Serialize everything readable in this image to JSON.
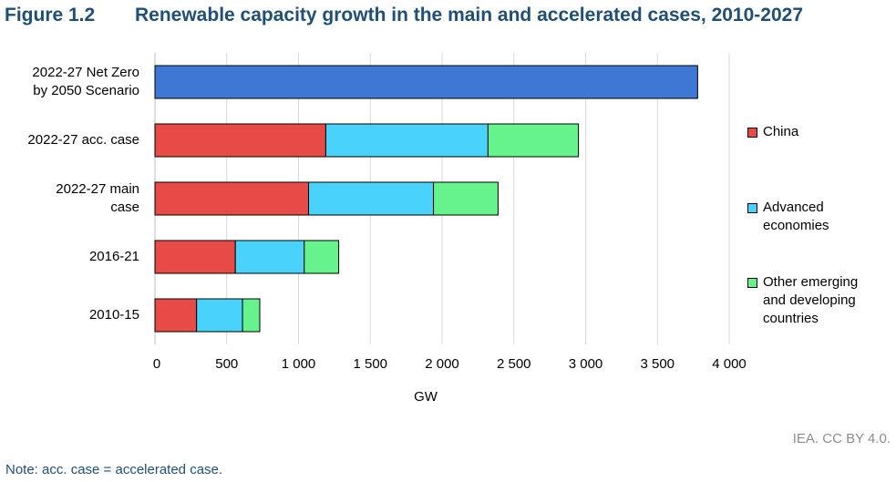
{
  "figure": {
    "number": "Figure 1.2",
    "title": "Renewable capacity growth in the main and accelerated cases, 2010-2027"
  },
  "credit": "IEA. CC BY 4.0.",
  "note": "Note: acc. case = accelerated case.",
  "colors": {
    "title": "#1f4e79",
    "china": "#e84a48",
    "advanced": "#49d2fb",
    "other": "#66f28d",
    "netzero": "#3f78d4",
    "grid": "#d9d9d9"
  },
  "chart_data": {
    "type": "bar",
    "orientation": "horizontal",
    "stacked": true,
    "categories": [
      "2022-27 Net Zero by 2050 Scenario",
      "2022-27 acc. case",
      "2022-27 main case",
      "2016-21",
      "2010-15"
    ],
    "category_lines": [
      [
        "2022-27 Net Zero",
        "by 2050 Scenario"
      ],
      [
        "2022-27 acc. case"
      ],
      [
        "2022-27 main",
        "case"
      ],
      [
        "2016-21"
      ],
      [
        "2010-15"
      ]
    ],
    "series": [
      {
        "name": "China",
        "color": "#e84a48",
        "values": [
          null,
          1190,
          1070,
          560,
          290
        ]
      },
      {
        "name": "Advanced economies",
        "color": "#49d2fb",
        "values": [
          null,
          1130,
          870,
          480,
          320
        ]
      },
      {
        "name": "Other emerging and developing countries",
        "color": "#66f28d",
        "values": [
          null,
          630,
          450,
          240,
          120
        ]
      }
    ],
    "total_series": {
      "color": "#3f78d4",
      "values": [
        3780,
        null,
        null,
        null,
        null
      ]
    },
    "xlabel": "GW",
    "xlim": [
      0,
      4000
    ],
    "xticks": [
      0,
      500,
      1000,
      1500,
      2000,
      2500,
      3000,
      3500,
      4000
    ],
    "xtick_labels": [
      "0",
      "500",
      "1 000",
      "1 500",
      "2 000",
      "2 500",
      "3 000",
      "3 500",
      "4 000"
    ],
    "grid": true,
    "legend_position": "right"
  },
  "legend": [
    {
      "lines": [
        "China"
      ],
      "color": "#e84a48"
    },
    {
      "lines": [
        "Advanced",
        "economies"
      ],
      "color": "#49d2fb"
    },
    {
      "lines": [
        "Other emerging",
        "and developing",
        "countries"
      ],
      "color": "#66f28d"
    }
  ]
}
